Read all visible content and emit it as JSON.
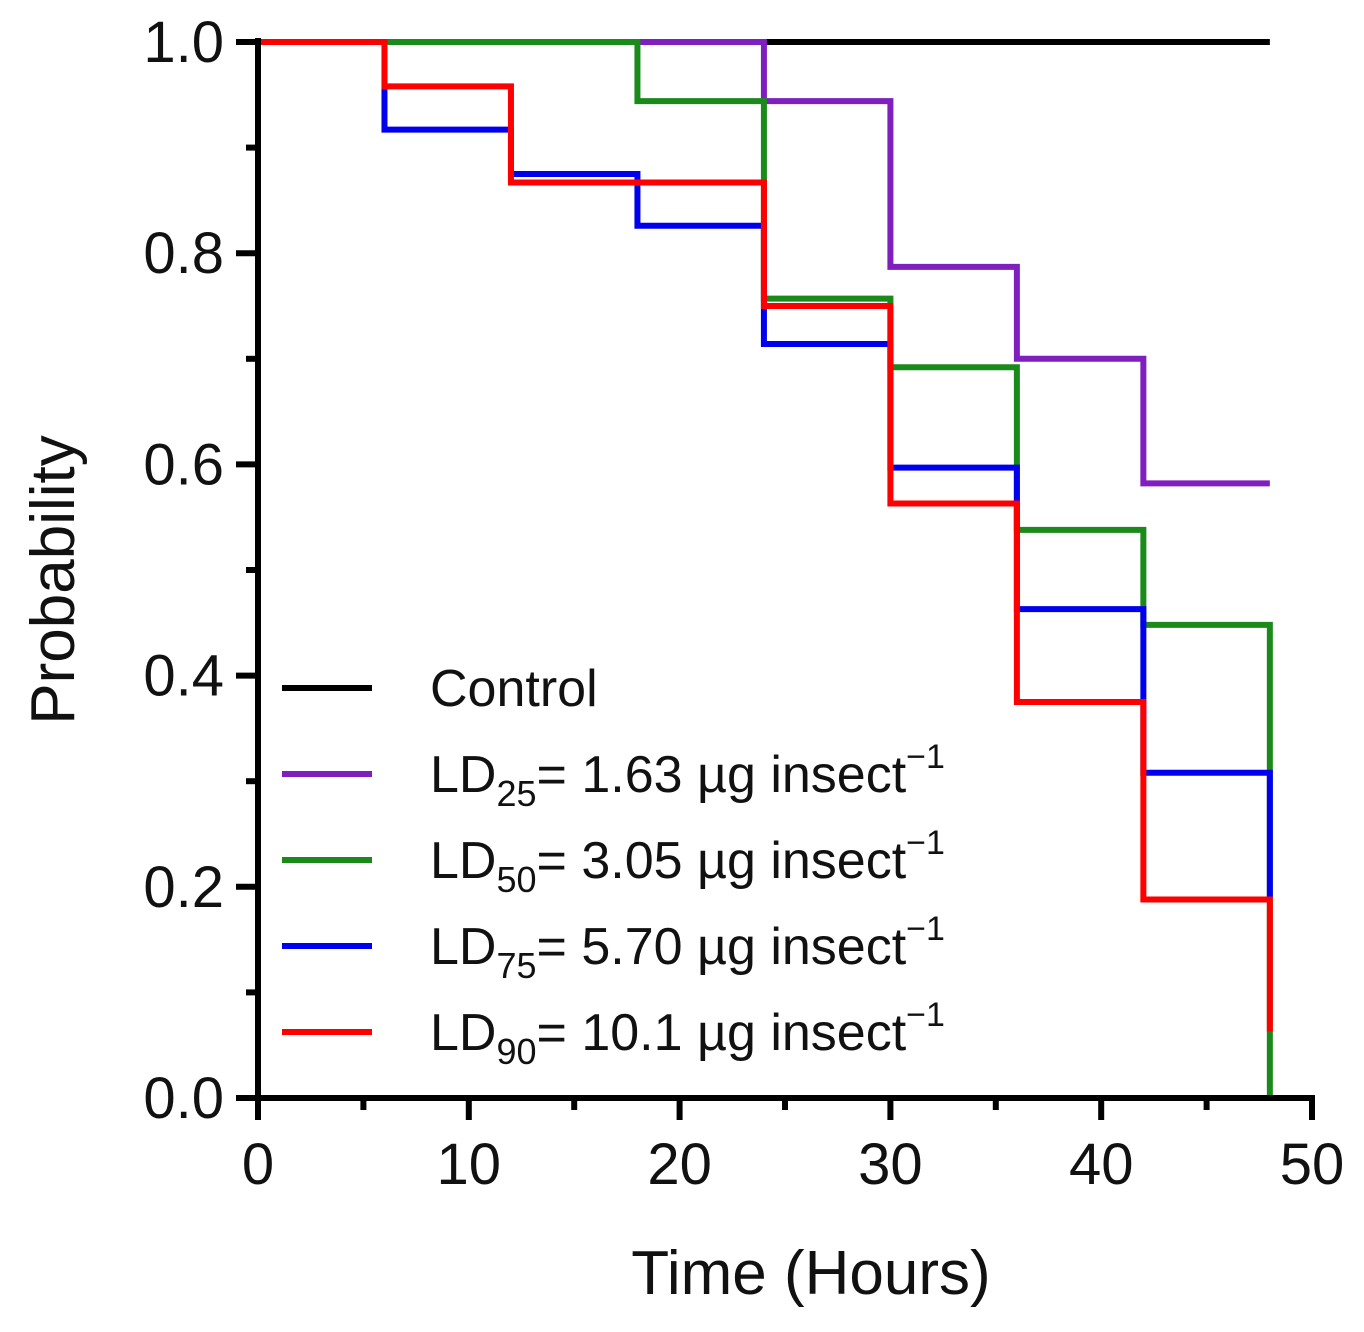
{
  "chart_data": {
    "type": "line",
    "step": true,
    "title": "",
    "xlabel": "Time (Hours)",
    "ylabel": "Probability",
    "xlim": [
      0,
      50
    ],
    "ylim": [
      0,
      1
    ],
    "xticks": [
      0,
      10,
      20,
      30,
      40,
      50
    ],
    "xtick_labels": [
      "0",
      "10",
      "20",
      "30",
      "40",
      "50"
    ],
    "yticks": [
      0,
      0.2,
      0.4,
      0.6,
      0.8,
      1.0
    ],
    "ytick_labels": [
      "0.0",
      "0.2",
      "0.4",
      "0.6",
      "0.8",
      "1.0"
    ],
    "legend_position": "bottom-left",
    "series": [
      {
        "name": "Control",
        "legend": {
          "prefix": "Control",
          "sub": "",
          "rest": "",
          "sup": ""
        },
        "color": "#000000",
        "x": [
          0,
          48
        ],
        "y": [
          1.0,
          1.0
        ]
      },
      {
        "name": "LD25= 1.63 µg insect−1",
        "legend": {
          "prefix": "LD",
          "sub": "25",
          "rest": "= 1.63 µg insect",
          "sup": "−1"
        },
        "color": "#7f1fbf",
        "x": [
          0,
          18,
          24,
          30,
          36,
          42,
          48
        ],
        "y": [
          1.0,
          1.0,
          0.944,
          0.787,
          0.7,
          0.582,
          0.582
        ]
      },
      {
        "name": "LD50= 3.05 µg insect−1",
        "legend": {
          "prefix": "LD",
          "sub": "50",
          "rest": "= 3.05 µg insect",
          "sup": "−1"
        },
        "color": "#1a8a1a",
        "x": [
          0,
          18,
          24,
          30,
          36,
          42,
          48
        ],
        "y": [
          1.0,
          0.944,
          0.757,
          0.692,
          0.538,
          0.448,
          0.0
        ]
      },
      {
        "name": "LD75= 5.70 µg insect−1",
        "legend": {
          "prefix": "LD",
          "sub": "75",
          "rest": "= 5.70 µg insect",
          "sup": "−1"
        },
        "color": "#0000ee",
        "x": [
          0,
          6,
          12,
          18,
          24,
          30,
          36,
          42,
          48
        ],
        "y": [
          1.0,
          0.917,
          0.875,
          0.826,
          0.714,
          0.597,
          0.463,
          0.308,
          0.19
        ]
      },
      {
        "name": "LD90= 10.1 µg insect−1",
        "legend": {
          "prefix": "LD",
          "sub": "90",
          "rest": "= 10.1 µg insect",
          "sup": "−1"
        },
        "color": "#ff0000",
        "x": [
          0,
          6,
          12,
          24,
          30,
          36,
          42,
          48
        ],
        "y": [
          1.0,
          0.958,
          0.867,
          0.75,
          0.563,
          0.375,
          0.188,
          0.063
        ]
      }
    ]
  }
}
